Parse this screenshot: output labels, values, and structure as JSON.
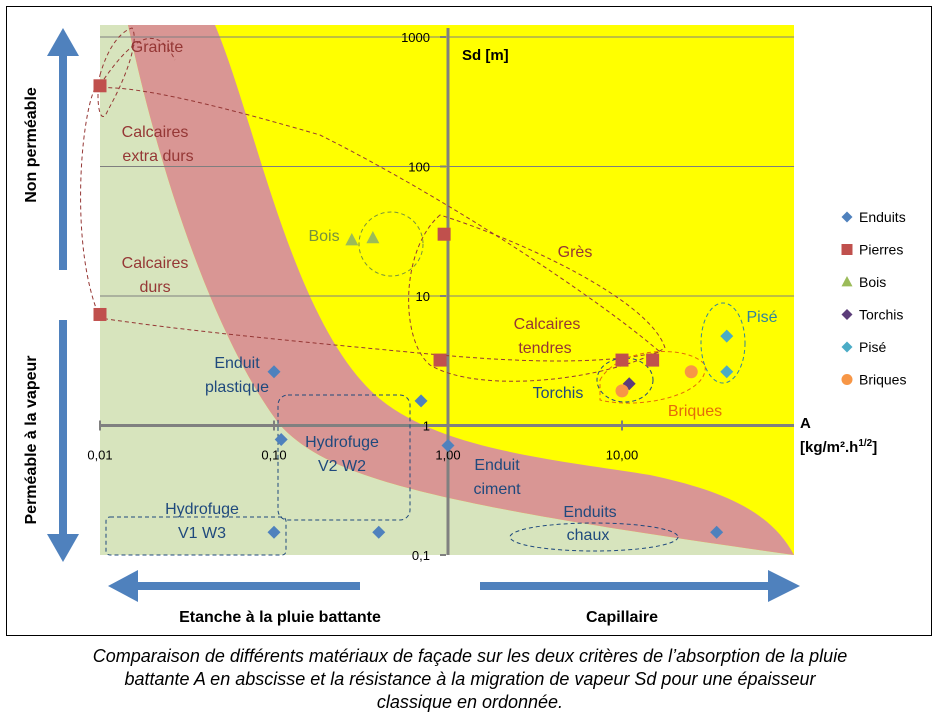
{
  "chart_data": {
    "type": "scatter",
    "x_scale": "log",
    "y_scale": "log",
    "xlim": [
      0.01,
      80
    ],
    "ylim": [
      0.1,
      1000
    ],
    "y_axis_title": "Sd [m]",
    "x_axis_title_line1": "A",
    "x_axis_title_line2": "[kg/m².h",
    "x_axis_title_sup": "1/2",
    "x_axis_title_end": "]",
    "x_ticks": [
      {
        "value": 0.01,
        "label": "0,01"
      },
      {
        "value": 0.1,
        "label": "0,10"
      },
      {
        "value": 1,
        "label": "1,00"
      },
      {
        "value": 10,
        "label": "10,00"
      }
    ],
    "y_ticks": [
      {
        "value": 1000,
        "label": "1000"
      },
      {
        "value": 100,
        "label": "100"
      },
      {
        "value": 10,
        "label": "10"
      },
      {
        "value": 1,
        "label": "1"
      },
      {
        "value": 0.1,
        "label": "0,1"
      }
    ],
    "grid": true,
    "legend_position": "right",
    "series": [
      {
        "name": "Enduits",
        "marker": "diamond",
        "color": "#4f81bd",
        "points": [
          [
            0.1,
            2.6
          ],
          [
            0.11,
            0.78
          ],
          [
            0.7,
            1.55
          ],
          [
            1,
            0.7
          ],
          [
            0.1,
            0.15
          ],
          [
            0.4,
            0.15
          ],
          [
            35,
            0.15
          ]
        ]
      },
      {
        "name": "Pierres",
        "marker": "square",
        "color": "#c0504d",
        "points": [
          [
            0.01,
            420
          ],
          [
            0.01,
            7.2
          ],
          [
            0.95,
            30
          ],
          [
            0.9,
            3.2
          ],
          [
            10,
            3.2
          ],
          [
            15,
            3.2
          ]
        ]
      },
      {
        "name": "Bois",
        "marker": "triangle",
        "color": "#9bbb59",
        "points": [
          [
            0.28,
            27
          ],
          [
            0.37,
            28
          ]
        ]
      },
      {
        "name": "Torchis",
        "marker": "diamond",
        "color": "#5c3d7a",
        "points": [
          [
            11,
            2.1
          ]
        ]
      },
      {
        "name": "Pisé",
        "marker": "diamond",
        "color": "#4bacc6",
        "points": [
          [
            40,
            4.9
          ],
          [
            40,
            2.6
          ]
        ]
      },
      {
        "name": "Briques",
        "marker": "circle",
        "color": "#f79646",
        "points": [
          [
            10,
            1.85
          ],
          [
            25,
            2.6
          ]
        ]
      }
    ],
    "region_labels": [
      {
        "text": "Granite",
        "color": "#953735"
      },
      {
        "text": "Calcaires",
        "color": "#953735"
      },
      {
        "text": "extra durs",
        "color": "#953735"
      },
      {
        "text": "Calcaires",
        "color": "#953735"
      },
      {
        "text": "durs",
        "color": "#953735"
      },
      {
        "text": "Grès",
        "color": "#953735"
      },
      {
        "text": "Calcaires",
        "color": "#953735"
      },
      {
        "text": "tendres",
        "color": "#953735"
      },
      {
        "text": "Bois",
        "color": "#77933c"
      },
      {
        "text": "Torchis",
        "color": "#1f497d"
      },
      {
        "text": "Briques",
        "color": "#e46c0a"
      },
      {
        "text": "Pisé",
        "color": "#31859c"
      },
      {
        "text": "Enduit",
        "color": "#1f497d"
      },
      {
        "text": "plastique",
        "color": "#1f497d"
      },
      {
        "text": "Hydrofuge",
        "color": "#1f497d"
      },
      {
        "text": "V2 W2",
        "color": "#1f497d"
      },
      {
        "text": "Enduit",
        "color": "#1f497d"
      },
      {
        "text": "ciment",
        "color": "#1f497d"
      },
      {
        "text": "Hydrofuge",
        "color": "#1f497d"
      },
      {
        "text": "V1 W3",
        "color": "#1f497d"
      },
      {
        "text": "Enduits",
        "color": "#1f497d"
      },
      {
        "text": "chaux",
        "color": "#1f497d"
      }
    ],
    "side_labels": {
      "left_top": "Non perméable",
      "left_bottom": "Perméable à la vapeur",
      "bottom_left": "Etanche à la pluie battante",
      "bottom_right": "Capillaire"
    },
    "colors": {
      "background": "#ffff00",
      "green_zone": "#d7e4bd",
      "red_band": "#d99694",
      "axis": "#808080",
      "arrow": "#4f81bd"
    }
  },
  "caption": {
    "line1": "Comparaison de différents matériaux de façade sur les deux critères de l’absorption de la pluie",
    "line2": "battante A en abscisse et la résistance à la migration de vapeur Sd pour une épaisseur",
    "line3": "classique en ordonnée."
  }
}
